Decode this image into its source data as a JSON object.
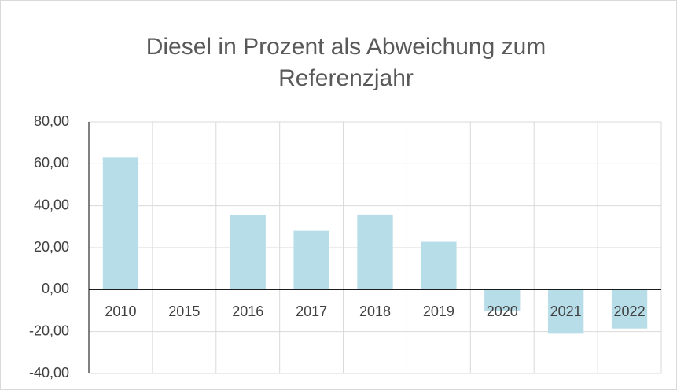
{
  "chart_data": {
    "type": "bar",
    "title": "Diesel in Prozent als Abweichung zum Referenzjahr",
    "categories": [
      "2010",
      "2015",
      "2016",
      "2017",
      "2018",
      "2019",
      "2020",
      "2021",
      "2022"
    ],
    "values": [
      63,
      0,
      35.5,
      28,
      35.8,
      22.8,
      -10,
      -21,
      -18.5
    ],
    "color": "#b7dde8",
    "ylim": [
      -40,
      80
    ],
    "yticks": [
      {
        "value": -40,
        "label": "-40,00"
      },
      {
        "value": -20,
        "label": "-20,00"
      },
      {
        "value": 0,
        "label": "0,00"
      },
      {
        "value": 20,
        "label": "20,00"
      },
      {
        "value": 40,
        "label": "40,00"
      },
      {
        "value": 60,
        "label": "60,00"
      },
      {
        "value": 80,
        "label": "80,00"
      }
    ],
    "grid": true
  }
}
